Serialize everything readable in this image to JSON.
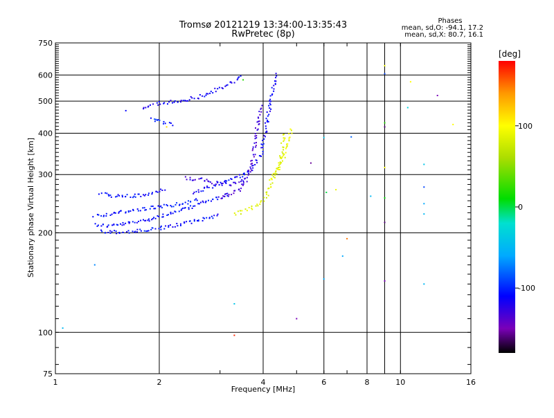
{
  "chart_data": {
    "type": "scatter",
    "title": "Tromsø 20121219 13:34:00-13:35:43",
    "subtitle": "RwPretec (8p)",
    "xlabel": "Frequency [MHz]",
    "ylabel": "Stationary phase Virtual Height [km]",
    "x_scale": "log",
    "y_scale": "log",
    "xlim": [
      1,
      16
    ],
    "ylim": [
      75,
      750
    ],
    "x_tick_labels": [
      {
        "value": 1,
        "label": "1"
      },
      {
        "value": 2,
        "label": "2"
      },
      {
        "value": 4,
        "label": "4"
      },
      {
        "value": 6,
        "label": "6"
      },
      {
        "value": 8,
        "label": "8"
      },
      {
        "value": 10,
        "label": "10"
      },
      {
        "value": 16,
        "label": "16"
      }
    ],
    "y_tick_labels": [
      {
        "value": 75,
        "label": "75"
      },
      {
        "value": 100,
        "label": "100"
      },
      {
        "value": 200,
        "label": "200"
      },
      {
        "value": 300,
        "label": "300"
      },
      {
        "value": 400,
        "label": "400"
      },
      {
        "value": 500,
        "label": "500"
      },
      {
        "value": 600,
        "label": "600"
      },
      {
        "value": 750,
        "label": "750"
      }
    ],
    "grid": true,
    "grid_x": [
      2,
      4,
      6,
      8,
      9,
      10
    ],
    "grid_y": [
      100,
      200,
      300,
      400,
      500,
      600
    ],
    "phase_box": {
      "heading": "Phases",
      "line_o": "mean, sd,O: -94.1, 17.2",
      "line_x": "mean, sd,X:  80.7, 16.1"
    },
    "colorbar": {
      "label": "[deg]",
      "min": -180,
      "max": 180,
      "tick_labels": [
        {
          "value": 100,
          "label": "100"
        },
        {
          "value": 0,
          "label": "0"
        },
        {
          "value": -100,
          "label": "-100"
        }
      ],
      "stops": [
        {
          "value": -180,
          "color": "#000000"
        },
        {
          "value": -150,
          "color": "#7a00b8"
        },
        {
          "value": -110,
          "color": "#0000ff"
        },
        {
          "value": -60,
          "color": "#00aaff"
        },
        {
          "value": -20,
          "color": "#00e0d0"
        },
        {
          "value": 10,
          "color": "#00dd00"
        },
        {
          "value": 60,
          "color": "#aadd00"
        },
        {
          "value": 100,
          "color": "#ffff00"
        },
        {
          "value": 140,
          "color": "#ff9900"
        },
        {
          "value": 180,
          "color": "#ff0000"
        }
      ]
    },
    "traces": [
      {
        "phase": -110,
        "points": [
          [
            1.3,
            212
          ],
          [
            1.4,
            210
          ],
          [
            1.5,
            211
          ],
          [
            1.6,
            213
          ],
          [
            1.7,
            215
          ],
          [
            1.8,
            218
          ],
          [
            1.9,
            221
          ],
          [
            2.0,
            224
          ],
          [
            2.1,
            227
          ],
          [
            2.2,
            230
          ],
          [
            2.3,
            233
          ],
          [
            2.4,
            236
          ],
          [
            2.5,
            240
          ],
          [
            2.6,
            245
          ],
          [
            2.8,
            250
          ],
          [
            3.0,
            256
          ],
          [
            3.2,
            262
          ]
        ]
      },
      {
        "phase": -108,
        "points": [
          [
            1.35,
            202
          ],
          [
            1.45,
            201
          ],
          [
            1.6,
            201
          ],
          [
            1.8,
            203
          ],
          [
            2.0,
            206
          ],
          [
            2.2,
            210
          ],
          [
            2.4,
            214
          ],
          [
            2.6,
            218
          ],
          [
            2.8,
            223
          ],
          [
            3.0,
            228
          ]
        ]
      },
      {
        "phase": -105,
        "points": [
          [
            1.3,
            225
          ],
          [
            1.45,
            228
          ],
          [
            1.6,
            232
          ],
          [
            1.8,
            236
          ],
          [
            2.0,
            240
          ],
          [
            2.2,
            243
          ],
          [
            2.4,
            247
          ],
          [
            2.6,
            252
          ]
        ]
      },
      {
        "phase": -108,
        "points": [
          [
            1.35,
            262
          ],
          [
            1.5,
            258
          ],
          [
            1.7,
            258
          ],
          [
            1.9,
            262
          ],
          [
            2.0,
            268
          ],
          [
            2.1,
            272
          ]
        ]
      },
      {
        "phase": -112,
        "points": [
          [
            2.5,
            265
          ],
          [
            2.7,
            270
          ],
          [
            2.9,
            278
          ],
          [
            3.1,
            286
          ],
          [
            3.3,
            292
          ],
          [
            3.5,
            300
          ],
          [
            3.7,
            310
          ],
          [
            3.85,
            330
          ],
          [
            3.95,
            350
          ],
          [
            4.0,
            380
          ],
          [
            4.05,
            400
          ],
          [
            4.1,
            430
          ],
          [
            4.15,
            460
          ],
          [
            4.2,
            500
          ],
          [
            4.3,
            560
          ],
          [
            4.35,
            610
          ]
        ]
      },
      {
        "phase": -132,
        "points": [
          [
            3.0,
            255
          ],
          [
            3.2,
            262
          ],
          [
            3.4,
            270
          ],
          [
            3.55,
            285
          ],
          [
            3.65,
            305
          ],
          [
            3.72,
            330
          ],
          [
            3.78,
            360
          ],
          [
            3.82,
            390
          ],
          [
            3.85,
            420
          ],
          [
            3.9,
            460
          ],
          [
            3.95,
            490
          ]
        ]
      },
      {
        "phase": -125,
        "points": [
          [
            2.4,
            292
          ],
          [
            2.6,
            290
          ],
          [
            2.8,
            285
          ],
          [
            3.0,
            282
          ],
          [
            3.2,
            280
          ],
          [
            3.4,
            284
          ],
          [
            3.6,
            290
          ]
        ]
      },
      {
        "phase": -115,
        "points": [
          [
            1.8,
            480
          ],
          [
            1.9,
            488
          ],
          [
            2.0,
            492
          ],
          [
            2.2,
            498
          ],
          [
            2.4,
            505
          ],
          [
            2.6,
            515
          ],
          [
            2.8,
            530
          ],
          [
            3.0,
            545
          ],
          [
            3.2,
            565
          ],
          [
            3.4,
            585
          ],
          [
            3.5,
            600
          ]
        ]
      },
      {
        "phase": -100,
        "points": [
          [
            1.9,
            440
          ],
          [
            2.0,
            435
          ],
          [
            2.1,
            430
          ],
          [
            2.2,
            425
          ]
        ]
      },
      {
        "phase": 85,
        "points": [
          [
            3.3,
            228
          ],
          [
            3.5,
            232
          ],
          [
            3.7,
            238
          ],
          [
            3.9,
            245
          ],
          [
            4.0,
            252
          ],
          [
            4.1,
            262
          ],
          [
            4.2,
            275
          ],
          [
            4.3,
            292
          ],
          [
            4.4,
            315
          ],
          [
            4.5,
            340
          ],
          [
            4.55,
            370
          ],
          [
            4.6,
            400
          ]
        ]
      },
      {
        "phase": 90,
        "points": [
          [
            4.2,
            290
          ],
          [
            4.3,
            298
          ],
          [
            4.4,
            305
          ],
          [
            4.5,
            320
          ],
          [
            4.6,
            345
          ],
          [
            4.7,
            375
          ],
          [
            4.8,
            395
          ],
          [
            4.85,
            415
          ]
        ]
      }
    ],
    "isolated_points": [
      {
        "x": 1.05,
        "y": 103,
        "phase": -50
      },
      {
        "x": 1.3,
        "y": 160,
        "phase": -70
      },
      {
        "x": 1.6,
        "y": 468,
        "phase": -110
      },
      {
        "x": 2.1,
        "y": 418,
        "phase": 115
      },
      {
        "x": 3.3,
        "y": 98,
        "phase": 170
      },
      {
        "x": 3.3,
        "y": 122,
        "phase": -40
      },
      {
        "x": 3.5,
        "y": 580,
        "phase": 20
      },
      {
        "x": 5.0,
        "y": 110,
        "phase": -150
      },
      {
        "x": 5.5,
        "y": 325,
        "phase": -155
      },
      {
        "x": 6.0,
        "y": 145,
        "phase": -60
      },
      {
        "x": 6.0,
        "y": 388,
        "phase": -40
      },
      {
        "x": 6.1,
        "y": 265,
        "phase": 0
      },
      {
        "x": 6.5,
        "y": 270,
        "phase": 90
      },
      {
        "x": 6.8,
        "y": 170,
        "phase": -60
      },
      {
        "x": 7.0,
        "y": 192,
        "phase": 150
      },
      {
        "x": 7.2,
        "y": 390,
        "phase": -80
      },
      {
        "x": 8.2,
        "y": 258,
        "phase": -50
      },
      {
        "x": 9.0,
        "y": 640,
        "phase": 95
      },
      {
        "x": 9.0,
        "y": 605,
        "phase": -90
      },
      {
        "x": 9.0,
        "y": 430,
        "phase": 20
      },
      {
        "x": 9.0,
        "y": 418,
        "phase": -160
      },
      {
        "x": 9.0,
        "y": 315,
        "phase": 100
      },
      {
        "x": 9.0,
        "y": 255,
        "phase": 10
      },
      {
        "x": 9.0,
        "y": 215,
        "phase": -160
      },
      {
        "x": 9.0,
        "y": 143,
        "phase": -150
      },
      {
        "x": 10.5,
        "y": 478,
        "phase": -30
      },
      {
        "x": 10.7,
        "y": 572,
        "phase": 100
      },
      {
        "x": 11.7,
        "y": 322,
        "phase": -40
      },
      {
        "x": 11.7,
        "y": 275,
        "phase": -90
      },
      {
        "x": 11.7,
        "y": 245,
        "phase": -60
      },
      {
        "x": 11.7,
        "y": 228,
        "phase": -50
      },
      {
        "x": 11.7,
        "y": 140,
        "phase": -50
      },
      {
        "x": 12.8,
        "y": 520,
        "phase": -150
      },
      {
        "x": 14.2,
        "y": 425,
        "phase": 100
      }
    ]
  }
}
